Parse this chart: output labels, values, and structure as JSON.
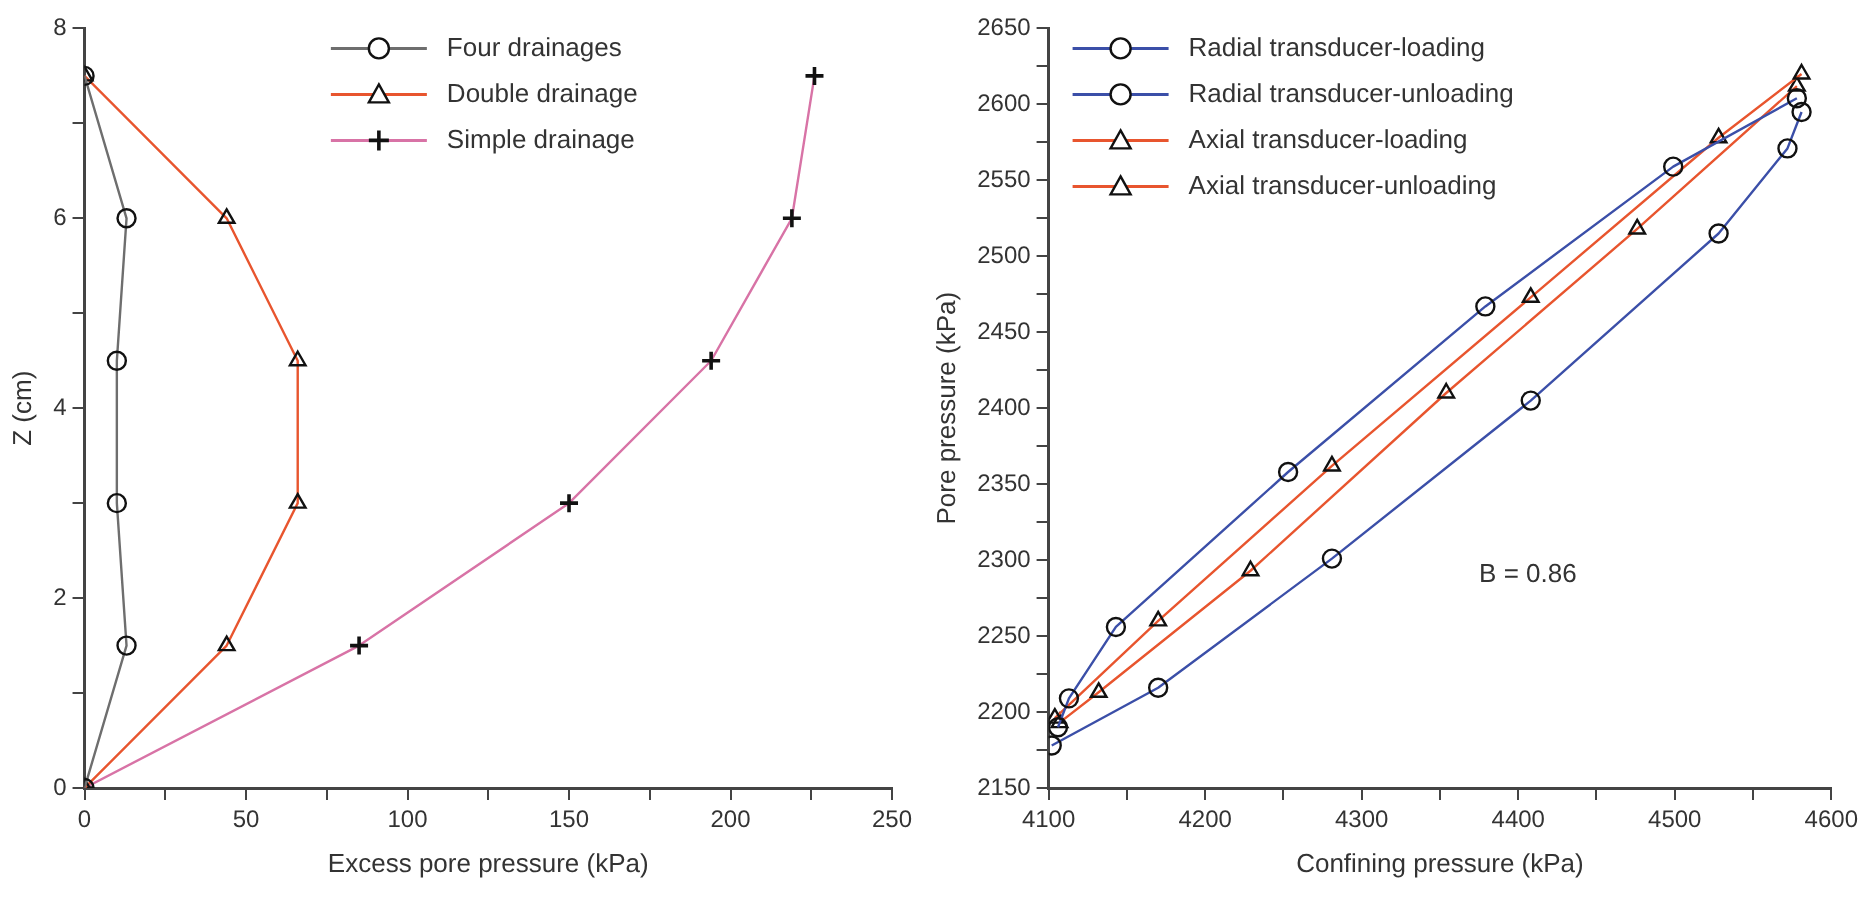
{
  "chart_data": [
    {
      "type": "line",
      "xlabel": "Excess pore pressure (kPa)",
      "ylabel": "Z (cm)",
      "xlim": [
        0,
        250
      ],
      "ylim": [
        0,
        8
      ],
      "xticks": [
        0,
        {
          "value": 25,
          "label": null
        },
        50,
        {
          "value": 75,
          "label": null
        },
        100,
        {
          "value": 125,
          "label": null
        },
        150,
        {
          "value": 175,
          "label": null
        },
        200,
        {
          "value": 225,
          "label": null
        },
        250
      ],
      "yticks": [
        0,
        {
          "value": 1,
          "label": null
        },
        2,
        {
          "value": 3,
          "label": null
        },
        4,
        {
          "value": 5,
          "label": null
        },
        6,
        {
          "value": 7,
          "label": null
        },
        8
      ],
      "grid": false,
      "legend": "top",
      "series": [
        {
          "name": "Four drainages",
          "color": "#6e6e6e",
          "marker": "circle",
          "x": [
            0,
            13,
            10,
            10,
            13,
            0
          ],
          "values": [
            0,
            1.5,
            3,
            4.5,
            6,
            7.5
          ]
        },
        {
          "name": "Double drainage",
          "color": "#e8552e",
          "marker": "triangle",
          "x": [
            0,
            44,
            66,
            66,
            44,
            0
          ],
          "values": [
            0,
            1.5,
            3,
            4.5,
            6,
            7.5
          ]
        },
        {
          "name": "Simple drainage",
          "color": "#d873a6",
          "marker": "cross",
          "x": [
            0,
            85,
            150,
            194,
            219,
            226
          ],
          "values": [
            0,
            1.5,
            3,
            4.5,
            6,
            7.5
          ]
        }
      ]
    },
    {
      "type": "line",
      "xlabel": "Confining pressure (kPa)",
      "ylabel": "Pore pressure (kPa)",
      "xlim": [
        4100,
        4600
      ],
      "ylim": [
        2150,
        2650
      ],
      "xticks": [
        4100,
        {
          "value": 4150,
          "label": null
        },
        4200,
        {
          "value": 4250,
          "label": null
        },
        4300,
        {
          "value": 4350,
          "label": null
        },
        4400,
        {
          "value": 4450,
          "label": null
        },
        4500,
        {
          "value": 4550,
          "label": null
        },
        4600
      ],
      "yticks": [
        2150,
        {
          "value": 2175,
          "label": null
        },
        2200,
        {
          "value": 2225,
          "label": null
        },
        2250,
        {
          "value": 2275,
          "label": null
        },
        2300,
        {
          "value": 2325,
          "label": null
        },
        2350,
        {
          "value": 2375,
          "label": null
        },
        2400,
        {
          "value": 2425,
          "label": null
        },
        2450,
        {
          "value": 2475,
          "label": null
        },
        2500,
        {
          "value": 2525,
          "label": null
        },
        2550,
        {
          "value": 2575,
          "label": null
        },
        2600,
        {
          "value": 2625,
          "label": null
        },
        2650
      ],
      "grid": false,
      "legend": "top left",
      "annotations": [
        "B = 0.86"
      ],
      "series": [
        {
          "name": "Radial transducer-loading",
          "color": "#3b4fa8",
          "marker": "circle",
          "x": [
            4102,
            4170,
            4281,
            4408,
            4528,
            4572,
            4581
          ],
          "values": [
            2178,
            2216,
            2301,
            2405,
            2515,
            2571,
            2595
          ]
        },
        {
          "name": "Radial transducer-unloading",
          "color": "#3b4fa8",
          "marker": "circle",
          "x": [
            4578,
            4499,
            4379,
            4253,
            4143,
            4113,
            4106
          ],
          "values": [
            2604,
            2559,
            2467,
            2358,
            2256,
            2209,
            2190
          ]
        },
        {
          "name": "Axial transducer-loading",
          "color": "#e8552e",
          "marker": "triangle",
          "x": [
            4104,
            4170,
            4281,
            4408,
            4528,
            4581
          ],
          "values": [
            2196,
            2260,
            2362,
            2473,
            2578,
            2620
          ]
        },
        {
          "name": "Axial transducer-unloading",
          "color": "#e8552e",
          "marker": "triangle",
          "x": [
            4578,
            4476,
            4354,
            4229,
            4132,
            4107
          ],
          "values": [
            2612,
            2518,
            2410,
            2293,
            2213,
            2193
          ]
        }
      ]
    }
  ]
}
